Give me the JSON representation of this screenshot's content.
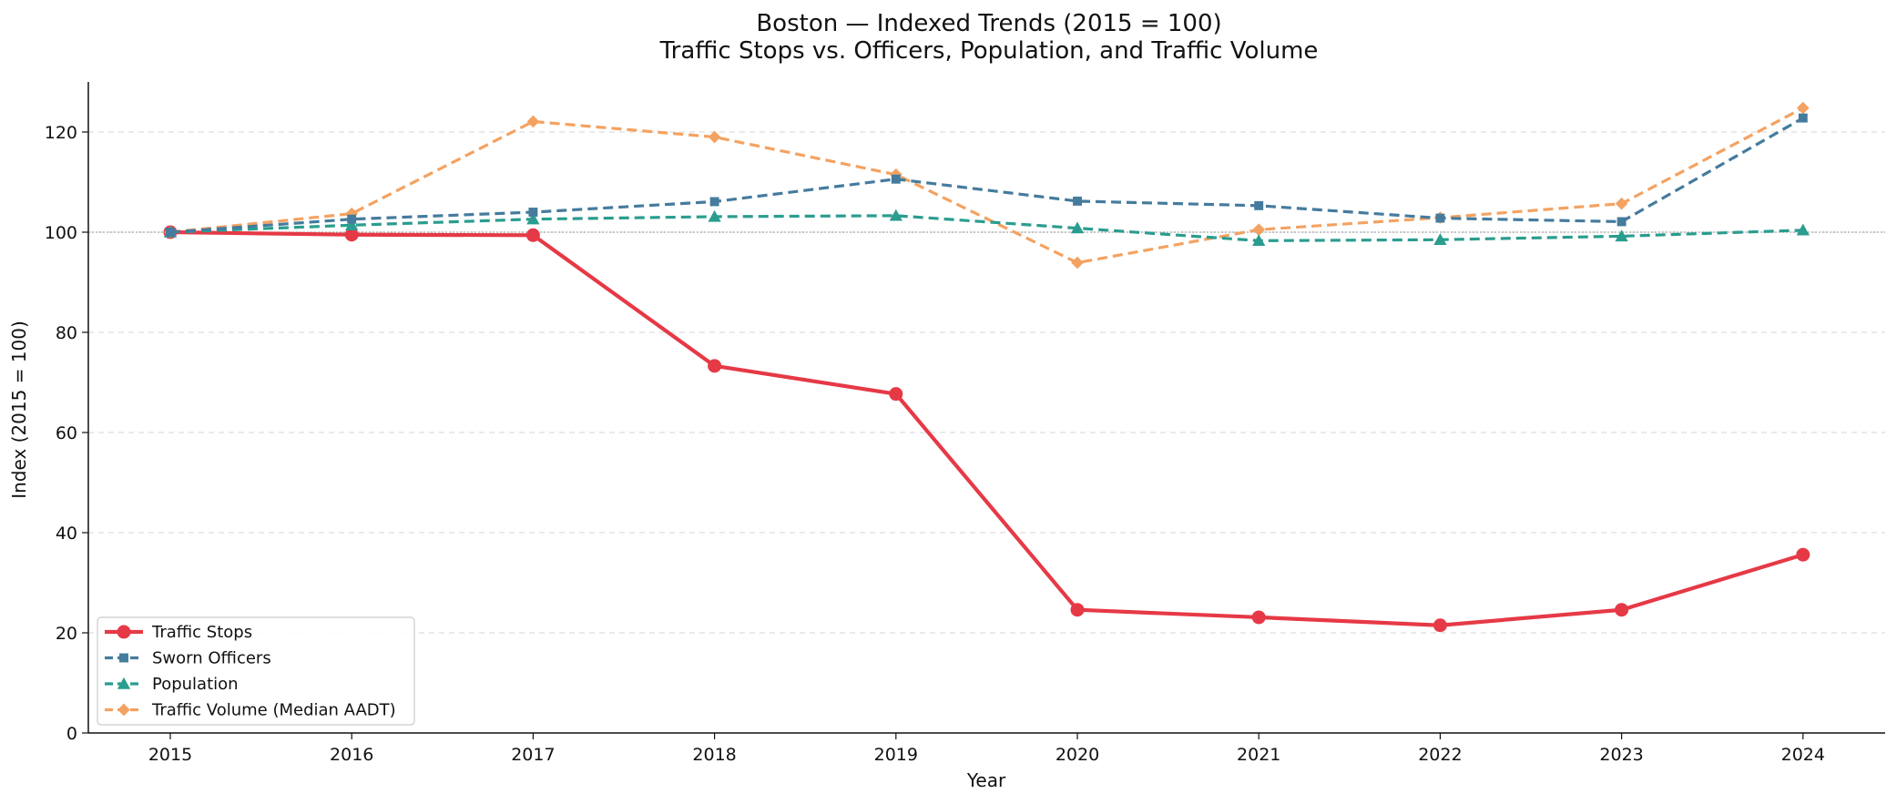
{
  "chart_data": {
    "type": "line",
    "title": "Boston — Indexed Trends (2015 = 100)",
    "subtitle": "Traffic Stops vs. Officers, Population, and Traffic Volume",
    "xlabel": "Year",
    "ylabel": "Index (2015 = 100)",
    "x": [
      "2015",
      "2016",
      "2017",
      "2018",
      "2019",
      "2020",
      "2021",
      "2022",
      "2023",
      "2024"
    ],
    "ylim": [
      0,
      130
    ],
    "yticks": [
      "0",
      "20",
      "40",
      "60",
      "80",
      "100",
      "120"
    ],
    "grid": "horizontal dashed",
    "reference_line": 100,
    "legend_position": "lower-left",
    "series": [
      {
        "name": "Traffic Stops",
        "color": "#e63946",
        "marker": "circle",
        "style": "solid",
        "values": [
          100.0,
          99.5,
          99.4,
          73.3,
          67.7,
          24.6,
          23.1,
          21.5,
          24.6,
          35.6
        ]
      },
      {
        "name": "Sworn Officers",
        "color": "#457b9d",
        "marker": "square",
        "style": "dashed",
        "values": [
          100.0,
          102.6,
          104.0,
          106.1,
          110.6,
          106.2,
          105.3,
          102.8,
          102.1,
          122.8
        ]
      },
      {
        "name": "Population",
        "color": "#2a9d8f",
        "marker": "triangle",
        "style": "dashed",
        "values": [
          100.0,
          101.4,
          102.6,
          103.1,
          103.3,
          100.8,
          98.3,
          98.5,
          99.2,
          100.4
        ]
      },
      {
        "name": "Traffic Volume (Median AADT)",
        "color": "#f4a261",
        "marker": "diamond",
        "style": "dashed",
        "values": [
          100.0,
          103.7,
          122.1,
          119.0,
          111.5,
          93.9,
          100.5,
          102.9,
          105.7,
          124.8
        ]
      }
    ]
  }
}
